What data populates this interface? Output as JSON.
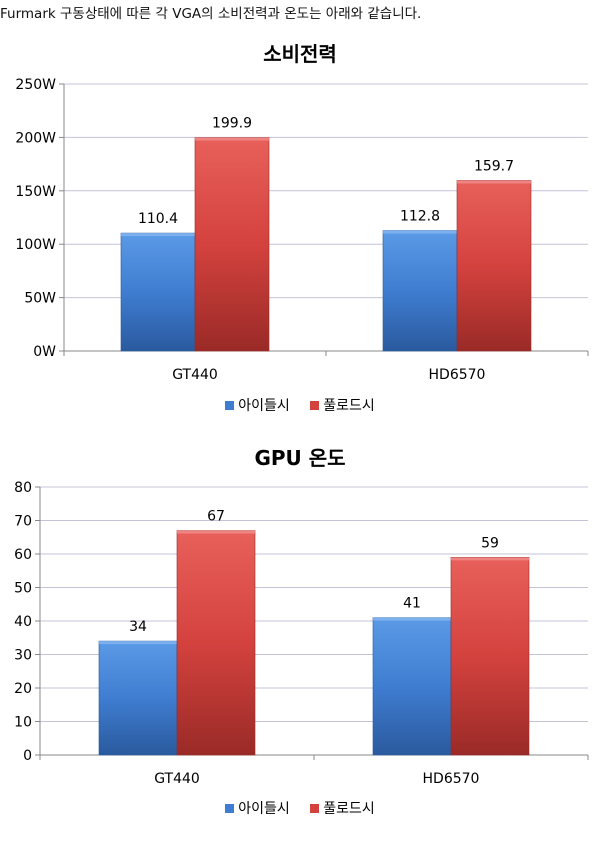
{
  "intro_text": "Furmark 구동상태에 따른 각 VGA의 소비전력과 온도는 아래와 같습니다.",
  "colors": {
    "idle": "#3f7dd1",
    "load": "#d4423e",
    "idle_dark": "#2a5a9e",
    "load_dark": "#9a2a27"
  },
  "chart_data": [
    {
      "type": "bar",
      "title": "소비전력",
      "xlabel": "",
      "ylabel": "",
      "categories": [
        "GT440",
        "HD6570"
      ],
      "series": [
        {
          "name": "아이들시",
          "values": [
            110.4,
            112.8
          ],
          "labels": [
            "110.4",
            "112.8"
          ]
        },
        {
          "name": "풀로드시",
          "values": [
            199.9,
            159.7
          ],
          "labels": [
            "199.9",
            "159.7"
          ]
        }
      ],
      "ylim": [
        0,
        250
      ],
      "yticks": [
        0,
        50,
        100,
        150,
        200,
        250
      ],
      "ytick_labels": [
        "0W",
        "50W",
        "100W",
        "150W",
        "200W",
        "250W"
      ],
      "grid": true,
      "legend": "bottom"
    },
    {
      "type": "bar",
      "title": "GPU 온도",
      "xlabel": "",
      "ylabel": "",
      "categories": [
        "GT440",
        "HD6570"
      ],
      "series": [
        {
          "name": "아이들시",
          "values": [
            34,
            41
          ],
          "labels": [
            "34",
            "41"
          ]
        },
        {
          "name": "풀로드시",
          "values": [
            67,
            59
          ],
          "labels": [
            "67",
            "59"
          ]
        }
      ],
      "ylim": [
        0,
        80
      ],
      "yticks": [
        0,
        10,
        20,
        30,
        40,
        50,
        60,
        70,
        80
      ],
      "ytick_labels": [
        "0",
        "10",
        "20",
        "30",
        "40",
        "50",
        "60",
        "70",
        "80"
      ],
      "grid": true,
      "legend": "bottom"
    }
  ]
}
